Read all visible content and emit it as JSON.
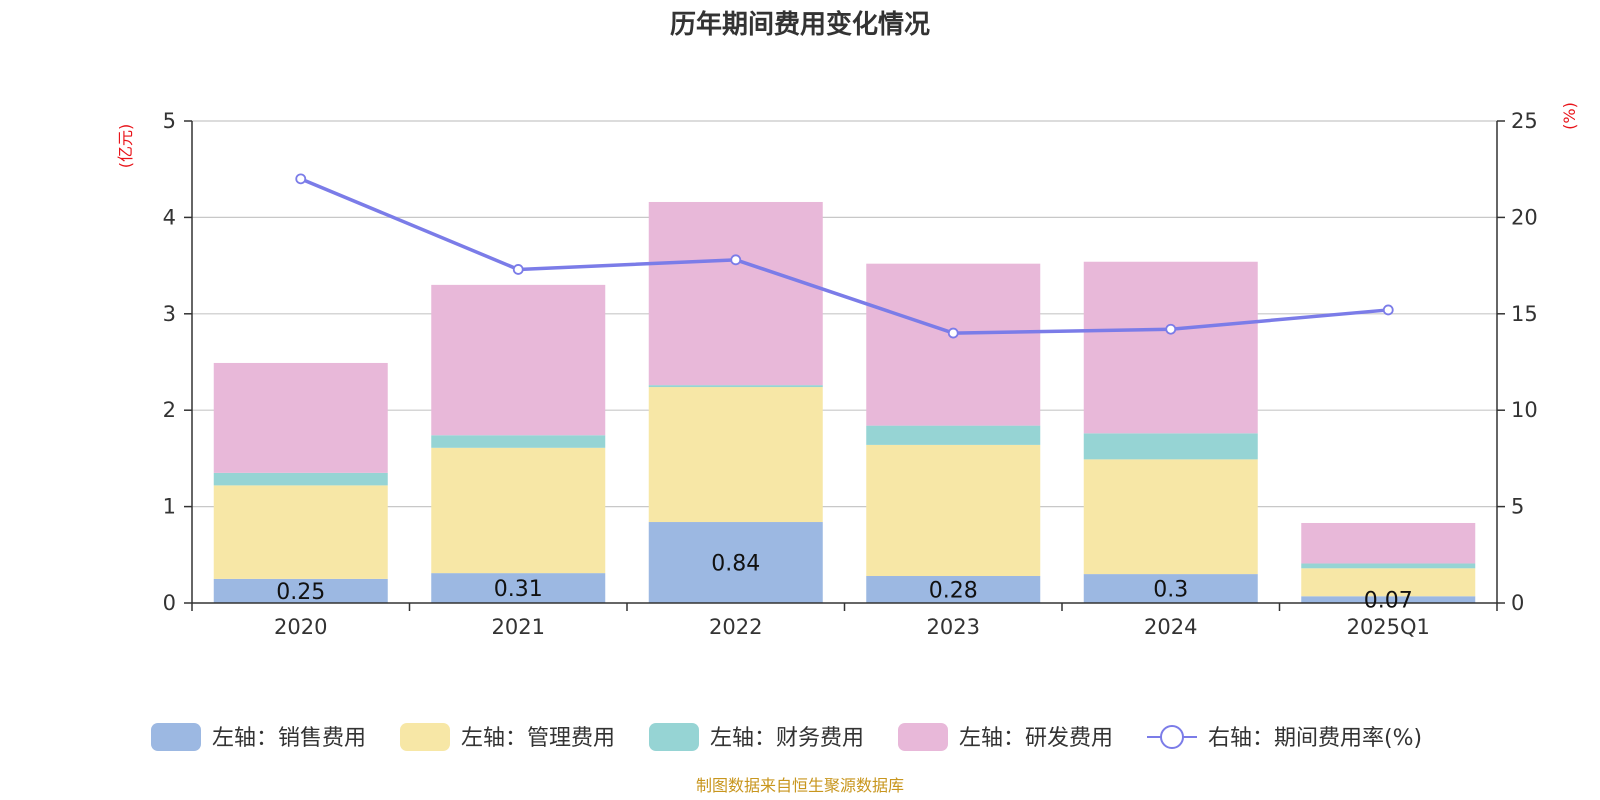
{
  "chart_data": {
    "type": "bar",
    "title": "历年期间费用变化情况",
    "categories": [
      "2020",
      "2021",
      "2022",
      "2023",
      "2024",
      "2025Q1"
    ],
    "left_axis": {
      "unit": "(亿元)",
      "min": 0,
      "max": 5,
      "ticks": [
        "0",
        "1",
        "2",
        "3",
        "4",
        "5"
      ]
    },
    "right_axis": {
      "unit": "(%)",
      "min": 0,
      "max": 25,
      "ticks": [
        "0",
        "5",
        "10",
        "15",
        "20",
        "25"
      ]
    },
    "grid": true,
    "series": [
      {
        "name": "左轴：销售费用",
        "kind": "bar",
        "axis": "left",
        "color": "#9cb8e2",
        "values": [
          0.25,
          0.31,
          0.84,
          0.28,
          0.3,
          0.07
        ],
        "labels": [
          "0.25",
          "0.31",
          "0.84",
          "0.28",
          "0.3",
          "0.07"
        ]
      },
      {
        "name": "左轴：管理费用",
        "kind": "bar",
        "axis": "left",
        "color": "#f7e7a6",
        "values": [
          0.97,
          1.3,
          1.4,
          1.36,
          1.19,
          0.29
        ]
      },
      {
        "name": "左轴：财务费用",
        "kind": "bar",
        "axis": "left",
        "color": "#96d4d4",
        "values": [
          0.13,
          0.13,
          0.02,
          0.2,
          0.27,
          0.05
        ]
      },
      {
        "name": "左轴：研发费用",
        "kind": "bar",
        "axis": "left",
        "color": "#e8b8d9",
        "values": [
          1.14,
          1.56,
          1.9,
          1.68,
          1.78,
          0.42
        ]
      },
      {
        "name": "右轴：期间费用率(%)",
        "kind": "line",
        "axis": "right",
        "color": "#7b7ce8",
        "values": [
          22.0,
          17.3,
          17.8,
          14.0,
          14.2,
          15.2
        ]
      }
    ],
    "legend_position": "bottom"
  },
  "source_note": "制图数据来自恒生聚源数据库"
}
